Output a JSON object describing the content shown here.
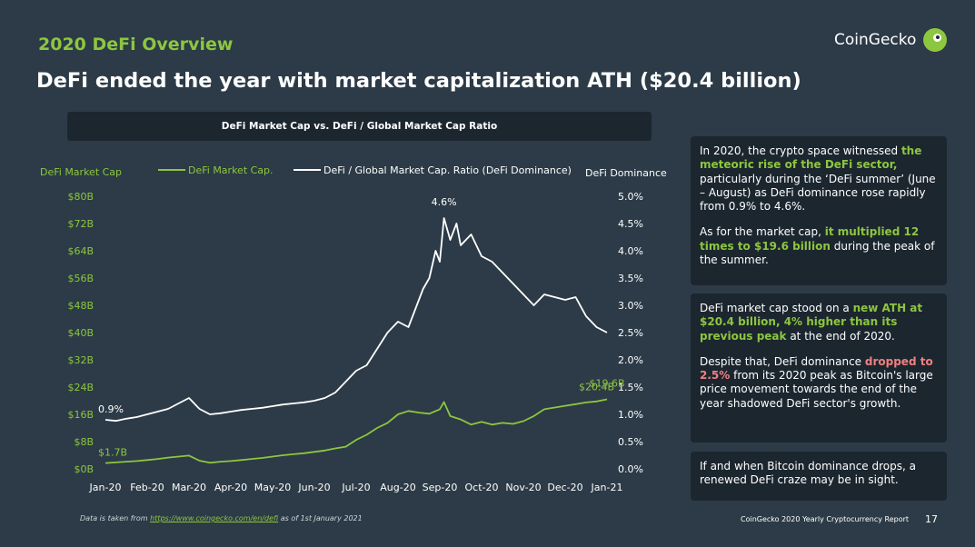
{
  "header": {
    "kicker": "2020 DeFi Overview",
    "title": "DeFi ended the year with market capitalization ATH ($20.4 billion)",
    "brand": "CoinGecko",
    "brand_icon": "gecko-logo-icon"
  },
  "colors": {
    "background": "#2c3b47",
    "panel": "#1c262f",
    "accent_green": "#8dc63f",
    "accent_red": "#f08080",
    "dominance_line": "#ffffff"
  },
  "chart_data": {
    "type": "line",
    "title": "DeFi Market Cap vs. DeFi / Global Market Cap Ratio",
    "left_axis_label": "DeFi Market Cap",
    "right_axis_label": "DeFi Dominance",
    "left_ticks": [
      "$0B",
      "$8B",
      "$16B",
      "$24B",
      "$32B",
      "$40B",
      "$48B",
      "$56B",
      "$64B",
      "$72B",
      "$80B"
    ],
    "right_ticks": [
      "0.0%",
      "0.5%",
      "1.0%",
      "1.5%",
      "2.0%",
      "2.5%",
      "3.0%",
      "3.5%",
      "4.0%",
      "4.5%",
      "5.0%"
    ],
    "x_ticks": [
      "Jan-20",
      "Feb-20",
      "Mar-20",
      "Apr-20",
      "May-20",
      "Jun-20",
      "Jul-20",
      "Aug-20",
      "Sep-20",
      "Oct-20",
      "Nov-20",
      "Dec-20",
      "Jan-21"
    ],
    "ylim_left": [
      0,
      80
    ],
    "ylim_right": [
      0,
      5
    ],
    "legend_position": "top",
    "series": [
      {
        "name": "DeFi Market Cap.",
        "axis": "left",
        "unit": "$B",
        "color": "#8dc63f",
        "x": [
          0,
          0.25,
          0.5,
          0.75,
          1,
          1.25,
          1.5,
          1.75,
          2,
          2.25,
          2.5,
          2.75,
          3,
          3.25,
          3.5,
          3.75,
          4,
          4.25,
          4.5,
          4.75,
          5,
          5.25,
          5.5,
          5.75,
          6,
          6.25,
          6.5,
          6.75,
          7,
          7.25,
          7.5,
          7.75,
          8,
          8.1,
          8.25,
          8.5,
          8.75,
          9,
          9.25,
          9.5,
          9.75,
          10,
          10.25,
          10.5,
          10.75,
          11,
          11.25,
          11.5,
          11.75,
          12
        ],
        "values": [
          1.7,
          1.9,
          2.1,
          2.3,
          2.6,
          2.9,
          3.3,
          3.6,
          3.9,
          2.4,
          1.8,
          2.1,
          2.3,
          2.6,
          2.9,
          3.2,
          3.6,
          4.0,
          4.3,
          4.6,
          5.0,
          5.4,
          6.0,
          6.5,
          8.5,
          10.0,
          12.0,
          13.5,
          16.0,
          17.0,
          16.5,
          16.2,
          17.5,
          19.6,
          15.5,
          14.5,
          13.0,
          13.8,
          13.0,
          13.5,
          13.2,
          14.0,
          15.5,
          17.5,
          18.0,
          18.5,
          19.0,
          19.5,
          19.8,
          20.4
        ]
      },
      {
        "name": "DeFi / Global Market Cap. Ratio (DeFi Dominance)",
        "axis": "right",
        "unit": "%",
        "color": "#ffffff",
        "x": [
          0,
          0.25,
          0.5,
          0.75,
          1,
          1.25,
          1.5,
          1.75,
          2,
          2.25,
          2.5,
          2.75,
          3,
          3.25,
          3.5,
          3.75,
          4,
          4.25,
          4.5,
          4.75,
          5,
          5.25,
          5.5,
          5.75,
          6,
          6.25,
          6.5,
          6.75,
          7,
          7.25,
          7.5,
          7.6,
          7.75,
          7.9,
          8,
          8.1,
          8.25,
          8.4,
          8.5,
          8.75,
          9,
          9.25,
          9.5,
          9.75,
          10,
          10.25,
          10.5,
          10.75,
          11,
          11.25,
          11.5,
          11.75,
          12
        ],
        "values": [
          0.9,
          0.88,
          0.92,
          0.95,
          1.0,
          1.05,
          1.1,
          1.2,
          1.3,
          1.1,
          1.0,
          1.02,
          1.05,
          1.08,
          1.1,
          1.12,
          1.15,
          1.18,
          1.2,
          1.22,
          1.25,
          1.3,
          1.4,
          1.6,
          1.8,
          1.9,
          2.2,
          2.5,
          2.7,
          2.6,
          3.1,
          3.3,
          3.5,
          4.0,
          3.8,
          4.6,
          4.2,
          4.5,
          4.1,
          4.3,
          3.9,
          3.8,
          3.6,
          3.4,
          3.2,
          3.0,
          3.2,
          3.15,
          3.1,
          3.15,
          2.8,
          2.6,
          2.5
        ]
      }
    ],
    "annotations": [
      {
        "text": "$1.7B",
        "series": 0,
        "at": "start"
      },
      {
        "text": "$19.6B",
        "series": 0,
        "at": "peak"
      },
      {
        "text": "$20.4B",
        "series": 0,
        "at": "end"
      },
      {
        "text": "0.9%",
        "series": 1,
        "at": "start"
      },
      {
        "text": "4.6%",
        "series": 1,
        "at": "peak"
      }
    ]
  },
  "notes": {
    "n1_p1_a": "In 2020, the crypto space witnessed ",
    "n1_p1_b": "the meteoric rise of the DeFi sector,",
    "n1_p1_c": " particularly during the ‘DeFi summer’ (June – August) as DeFi dominance rose rapidly from 0.9% to 4.6%.",
    "n1_p2_a": "As for the market cap, ",
    "n1_p2_b": "it multiplied 12 times to $19.6 billion",
    "n1_p2_c": " during the peak of the summer.",
    "n2_p1_a": "DeFi market cap stood on a ",
    "n2_p1_b": "new ATH at $20.4 billion, 4% higher than its previous peak",
    "n2_p1_c": " at the end of 2020.",
    "n2_p2_a": "Despite that, DeFi dominance ",
    "n2_p2_b": "dropped to 2.5%",
    "n2_p2_c": " from its 2020 peak as Bitcoin's large price movement towards the end of the year shadowed DeFi sector's growth.",
    "n3": "If and when Bitcoin dominance drops, a renewed DeFi craze may be in sight."
  },
  "footer": {
    "source_prefix": "Data is taken from ",
    "source_link": "https://www.coingecko.com/en/defi",
    "source_suffix": " as of 1st January 2021",
    "report": "CoinGecko 2020 Yearly Cryptocurrency Report",
    "page": "17"
  }
}
